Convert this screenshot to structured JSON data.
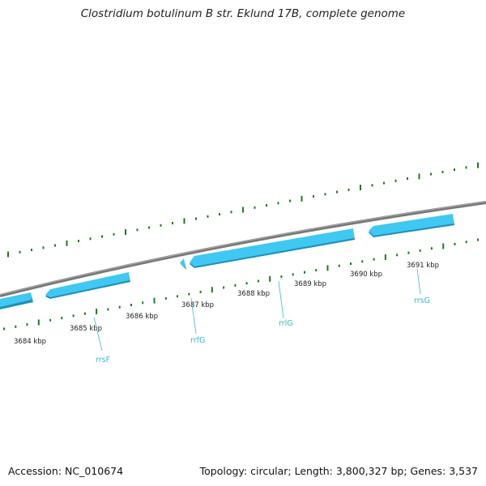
{
  "title": "Clostridium botulinum B str. Eklund 17B, complete genome",
  "footer": {
    "accession": "Accession: NC_010674",
    "summary": "Topology: circular; Length: 3,800,327 bp; Genes: 3,537"
  },
  "ticks": [
    {
      "label": "3684 kbp"
    },
    {
      "label": "3685 kbp"
    },
    {
      "label": "3686 kbp"
    },
    {
      "label": "3687 kbp"
    },
    {
      "label": "3688 kbp"
    },
    {
      "label": "3689 kbp"
    },
    {
      "label": "3690 kbp"
    },
    {
      "label": "3691 kbp"
    }
  ],
  "genes": [
    {
      "label": "rrsF"
    },
    {
      "label": "rrfG"
    },
    {
      "label": "rrlG"
    },
    {
      "label": "rrsG"
    }
  ],
  "colors": {
    "backbone": "#808080",
    "feature": "#3fc8f2",
    "feature_shadow": "#1f8fb6",
    "tick": "#1f7a1f",
    "gene_label": "#3bb6d8"
  }
}
